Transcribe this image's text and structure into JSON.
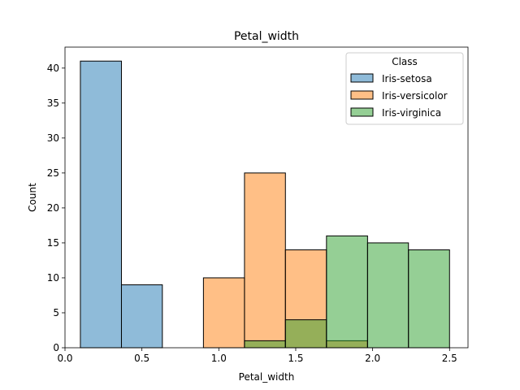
{
  "chart_data": {
    "type": "bar",
    "title": "Petal_width",
    "xlabel": "Petal_width",
    "ylabel": "Count",
    "xlim": [
      0.0,
      2.62
    ],
    "ylim": [
      0,
      43
    ],
    "x_ticks": [
      0.0,
      0.5,
      1.0,
      1.5,
      2.0,
      2.5
    ],
    "x_tick_labels": [
      "0.0",
      "0.5",
      "1.0",
      "1.5",
      "2.0",
      "2.5"
    ],
    "y_ticks": [
      0,
      5,
      10,
      15,
      20,
      25,
      30,
      35,
      40
    ],
    "y_tick_labels": [
      "0",
      "5",
      "10",
      "15",
      "20",
      "25",
      "30",
      "35",
      "40"
    ],
    "grid": false,
    "legend": {
      "title": "Class",
      "position": "top-right",
      "entries": [
        "Iris-setosa",
        "Iris-versicolor",
        "Iris-virginica"
      ]
    },
    "bin_edges": [
      0.1,
      0.367,
      0.633,
      0.9,
      1.167,
      1.433,
      1.7,
      1.967,
      2.233,
      2.5
    ],
    "series": [
      {
        "name": "Iris-setosa",
        "color": "#1f77b4",
        "values": [
          41,
          9,
          0,
          0,
          0,
          0,
          0,
          0,
          0
        ]
      },
      {
        "name": "Iris-versicolor",
        "color": "#ff7f0e",
        "values": [
          0,
          0,
          0,
          10,
          25,
          14,
          1,
          0,
          0
        ]
      },
      {
        "name": "Iris-virginica",
        "color": "#2ca02c",
        "values": [
          0,
          0,
          0,
          0,
          1,
          4,
          16,
          15,
          14
        ]
      }
    ]
  }
}
